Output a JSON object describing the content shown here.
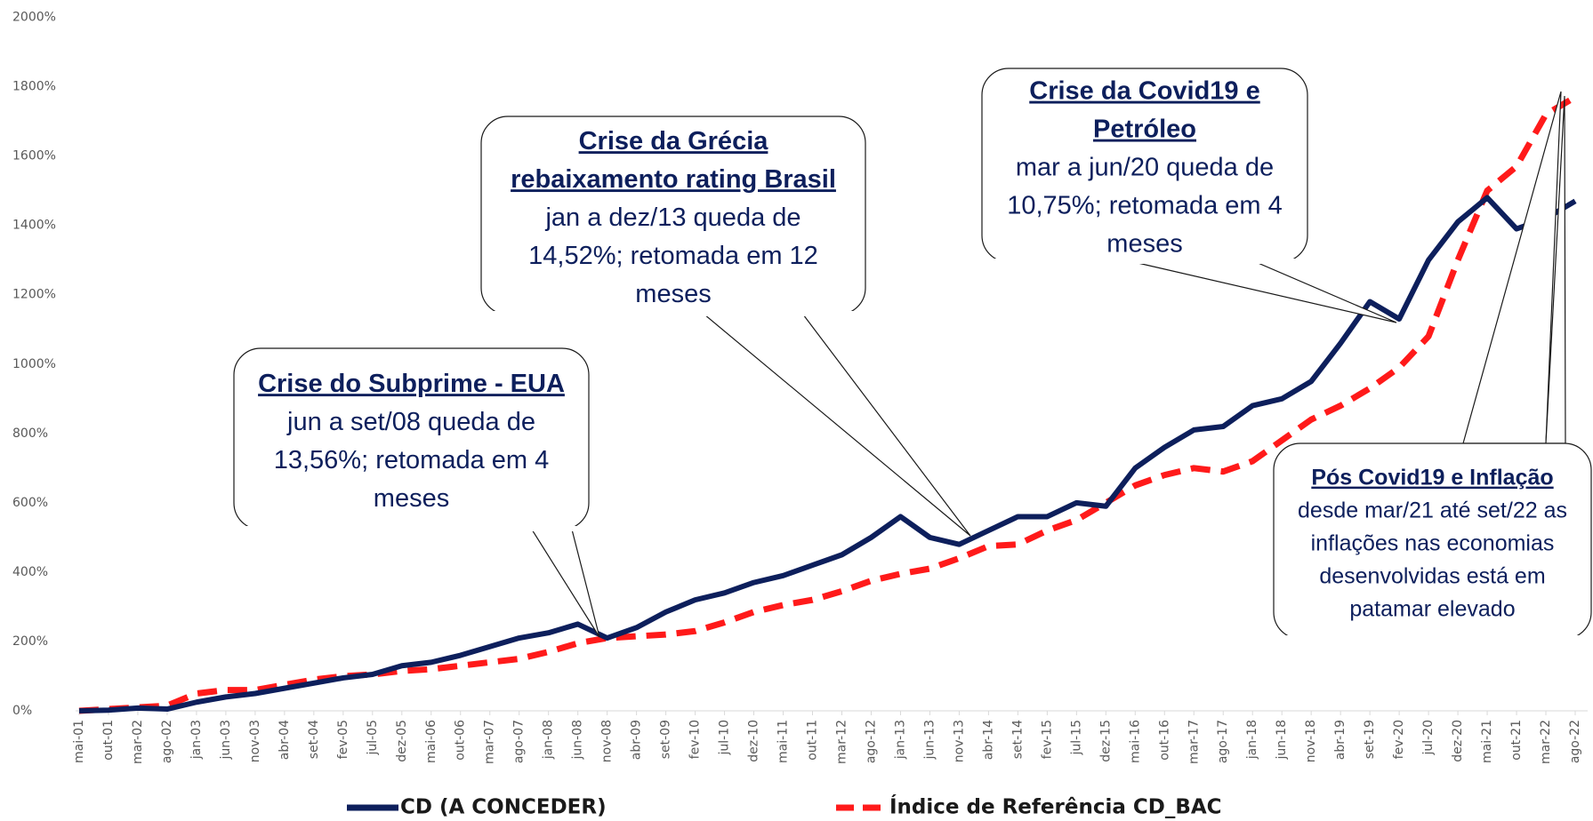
{
  "chart_data": {
    "type": "line",
    "categories": [
      "mai-01",
      "out-01",
      "mar-02",
      "ago-02",
      "jan-03",
      "jun-03",
      "nov-03",
      "abr-04",
      "set-04",
      "fev-05",
      "jul-05",
      "dez-05",
      "mai-06",
      "out-06",
      "mar-07",
      "ago-07",
      "jan-08",
      "jun-08",
      "nov-08",
      "abr-09",
      "set-09",
      "fev-10",
      "jul-10",
      "dez-10",
      "mai-11",
      "out-11",
      "mar-12",
      "ago-12",
      "jan-13",
      "jun-13",
      "nov-13",
      "abr-14",
      "set-14",
      "fev-15",
      "jul-15",
      "dez-15",
      "mai-16",
      "out-16",
      "mar-17",
      "ago-17",
      "jan-18",
      "jun-18",
      "nov-18",
      "abr-19",
      "set-19",
      "fev-20",
      "jul-20",
      "dez-20",
      "mai-21",
      "out-21",
      "mar-22",
      "ago-22"
    ],
    "series": [
      {
        "name": "CD (A CONCEDER)",
        "color": "#0d1f5c",
        "dash": false,
        "values": [
          0,
          2,
          8,
          5,
          25,
          40,
          50,
          65,
          80,
          95,
          105,
          130,
          140,
          160,
          185,
          210,
          225,
          250,
          210,
          240,
          285,
          320,
          340,
          370,
          390,
          420,
          450,
          500,
          560,
          500,
          480,
          520,
          560,
          560,
          600,
          590,
          700,
          760,
          810,
          820,
          880,
          900,
          950,
          1060,
          1180,
          1130,
          1300,
          1410,
          1480,
          1390,
          1420,
          1470
        ]
      },
      {
        "name": "Índice de Referência CD_BAC",
        "color": "#ff1a1a",
        "dash": true,
        "values": [
          0,
          5,
          10,
          15,
          50,
          60,
          60,
          75,
          90,
          100,
          105,
          115,
          120,
          130,
          140,
          150,
          170,
          195,
          210,
          215,
          220,
          230,
          255,
          285,
          305,
          320,
          345,
          375,
          395,
          410,
          440,
          475,
          480,
          520,
          550,
          600,
          650,
          680,
          700,
          690,
          720,
          780,
          840,
          880,
          930,
          990,
          1080,
          1300,
          1500,
          1570,
          1720,
          1770
        ]
      }
    ],
    "ylim": [
      0,
      2000
    ],
    "yticks": [
      {
        "value": 0,
        "label": "0%"
      },
      {
        "value": 200,
        "label": "200%"
      },
      {
        "value": 400,
        "label": "400%"
      },
      {
        "value": 600,
        "label": "600%"
      },
      {
        "value": 800,
        "label": "800%"
      },
      {
        "value": 1000,
        "label": "1000%"
      },
      {
        "value": 1200,
        "label": "1200%"
      },
      {
        "value": 1400,
        "label": "1400%"
      },
      {
        "value": 1600,
        "label": "1600%"
      },
      {
        "value": 1800,
        "label": "1800%"
      },
      {
        "value": 2000,
        "label": "2000%"
      }
    ],
    "grid": false,
    "legend": "bottom",
    "annotations": [
      {
        "title": [
          "Crise do Subprime - EUA"
        ],
        "body": [
          "jun a set/08 queda de",
          "13,56%; retomada em 4",
          "meses"
        ]
      },
      {
        "title": [
          "Crise da Grécia",
          "rebaixamento rating Brasil"
        ],
        "body": [
          "jan a dez/13 queda de",
          "14,52%; retomada em 12",
          "meses"
        ]
      },
      {
        "title": [
          "Crise da Covid19 e",
          "Petróleo"
        ],
        "body": [
          "mar a jun/20 queda de",
          "10,75%; retomada em 4",
          "meses"
        ]
      },
      {
        "title": [
          "Pós Covid19 e Inflação"
        ],
        "body": [
          "desde mar/21 até set/22 as",
          "inflações nas economias",
          "desenvolvidas está em",
          "patamar elevado"
        ]
      }
    ]
  }
}
